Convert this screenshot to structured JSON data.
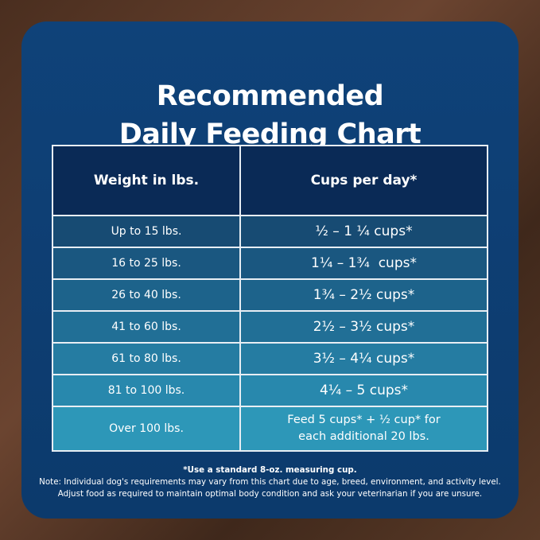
{
  "title": {
    "line1": "Recommended",
    "line2": "Daily Feeding Chart"
  },
  "table": {
    "headers": [
      "Weight in lbs.",
      "Cups per day*"
    ],
    "rows": [
      {
        "weight": "Up to 15 lbs.",
        "cups": "½ – 1 ¼ cups*"
      },
      {
        "weight": "16 to 25 lbs.",
        "cups": "1¼ – 1¾  cups*"
      },
      {
        "weight": "26 to 40 lbs.",
        "cups": "1¾ – 2½ cups*"
      },
      {
        "weight": "41 to 60 lbs.",
        "cups": "2½ – 3½ cups*"
      },
      {
        "weight": "61 to 80 lbs.",
        "cups": "3½ – 4¼ cups*"
      },
      {
        "weight": "81 to 100 lbs.",
        "cups": "4¼ – 5 cups*"
      },
      {
        "weight": "Over 100 lbs.",
        "cups": "Feed 5 cups* + ½ cup* for",
        "cups2": "each additional 20 lbs."
      }
    ]
  },
  "notes": {
    "footnote": "*Use a standard 8-oz. measuring cup.",
    "line1": "Note: Individual dog's requirements may vary from this chart due to age, breed, environment, and activity level.",
    "line2": "Adjust food as required to maintain optimal body condition and ask your veterinarian if you are unsure."
  },
  "colors": {
    "card": "#0f4279",
    "header": "#0a2a56",
    "row_first": "#174b73",
    "row_last": "#2d97b8",
    "background": "#5a3a27"
  }
}
